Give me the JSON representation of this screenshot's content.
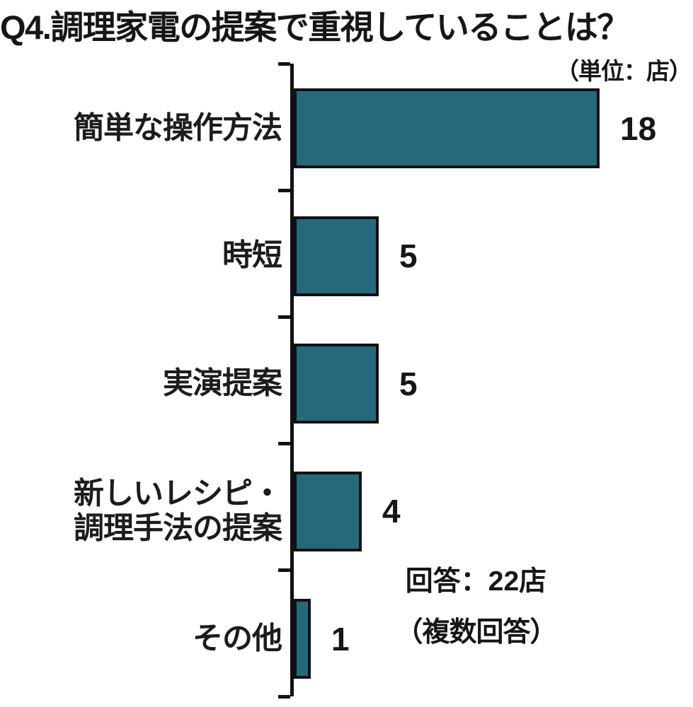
{
  "page": {
    "title": "Q4.調理家電の提案で重視していることは？",
    "unit_label": "（単位：店）",
    "note_line1": "回答：22店",
    "note_line2": "（複数回答）"
  },
  "chart_data": {
    "type": "bar",
    "orientation": "horizontal",
    "title": "Q4.調理家電の提案で重視していることは？",
    "unit": "店",
    "categories": [
      "簡単な操作方法",
      "時短",
      "実演提案",
      "新しいレシピ・調理手法の提案",
      "その他"
    ],
    "category_label_lines": [
      [
        "簡単な操作方法"
      ],
      [
        "時短"
      ],
      [
        "実演提案"
      ],
      [
        "新しいレシピ・",
        "調理手法の提案"
      ],
      [
        "その他"
      ]
    ],
    "values": [
      18,
      5,
      5,
      4,
      1
    ],
    "value_labels": [
      "18",
      "5",
      "5",
      "4",
      "1"
    ],
    "xlim": [
      0,
      20
    ],
    "grid": false,
    "legend": "none",
    "bar_color": "#26697D",
    "bar_border_color": "#111111",
    "annotations": [
      "（単位：店）",
      "回答：22店",
      "（複数回答）"
    ]
  },
  "colors": {
    "bar": "#26697D",
    "ink": "#111111",
    "background": "#ffffff"
  }
}
